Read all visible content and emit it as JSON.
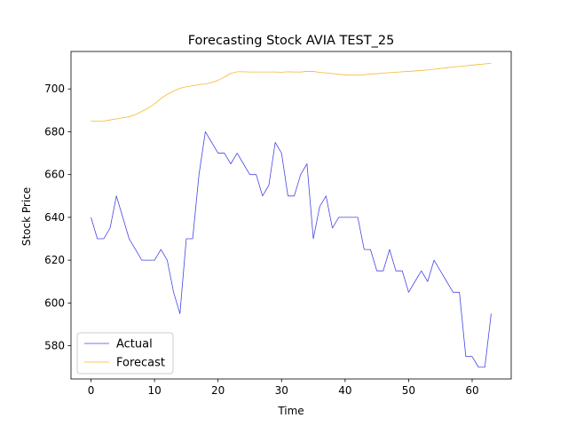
{
  "chart_data": {
    "type": "line",
    "title": "Forecasting Stock AVIA TEST_25",
    "xlabel": "Time",
    "ylabel": "Stock Price",
    "xlim": [
      -3.15,
      66.15
    ],
    "ylim": [
      564.5,
      717.5
    ],
    "xticks": [
      0,
      10,
      20,
      30,
      40,
      50,
      60
    ],
    "yticks": [
      580,
      600,
      620,
      640,
      660,
      680,
      700
    ],
    "grid": false,
    "legend_position": "lower-left",
    "series": [
      {
        "name": "Actual",
        "color": "#4646e6",
        "x": [
          0,
          1,
          2,
          3,
          4,
          5,
          6,
          7,
          8,
          9,
          10,
          11,
          12,
          13,
          14,
          15,
          16,
          17,
          18,
          19,
          20,
          21,
          22,
          23,
          24,
          25,
          26,
          27,
          28,
          29,
          30,
          31,
          32,
          33,
          34,
          35,
          36,
          37,
          38,
          39,
          40,
          41,
          42,
          43,
          44,
          45,
          46,
          47,
          48,
          49,
          50,
          51,
          52,
          53,
          54,
          55,
          56,
          57,
          58,
          59,
          60,
          61,
          62,
          63
        ],
        "values": [
          640,
          630,
          630,
          635,
          650,
          640,
          630,
          625,
          620,
          620,
          620,
          625,
          620,
          605,
          595,
          630,
          630,
          660,
          680,
          675,
          670,
          670,
          665,
          670,
          665,
          660,
          660,
          650,
          655,
          675,
          670,
          650,
          650,
          660,
          665,
          630,
          645,
          650,
          635,
          640,
          640,
          640,
          640,
          625,
          625,
          615,
          615,
          625,
          615,
          615,
          605,
          610,
          615,
          610,
          620,
          615,
          610,
          605,
          605,
          575,
          575,
          570,
          570,
          595
        ]
      },
      {
        "name": "Forecast",
        "color": "#f5b731",
        "x": [
          0,
          1,
          2,
          3,
          4,
          5,
          6,
          7,
          8,
          9,
          10,
          11,
          12,
          13,
          14,
          15,
          16,
          17,
          18,
          19,
          20,
          21,
          22,
          23,
          24,
          25,
          26,
          27,
          28,
          29,
          30,
          31,
          32,
          33,
          34,
          35,
          36,
          37,
          38,
          39,
          40,
          41,
          42,
          43,
          44,
          45,
          46,
          47,
          48,
          49,
          50,
          51,
          52,
          53,
          54,
          55,
          56,
          57,
          58,
          59,
          60,
          61,
          62,
          63
        ],
        "values": [
          685,
          685,
          685,
          685.5,
          686,
          686.5,
          687,
          688,
          689.5,
          691,
          693,
          695.5,
          697.5,
          699,
          700.3,
          701,
          701.5,
          702,
          702.3,
          703,
          704,
          705.5,
          707.3,
          708,
          708,
          707.9,
          707.9,
          707.9,
          707.9,
          707.9,
          707.8,
          708,
          707.9,
          707.9,
          708.2,
          708.2,
          707.7,
          707.5,
          707.2,
          706.8,
          706.6,
          706.4,
          706.5,
          706.6,
          707,
          707.1,
          707.4,
          707.6,
          707.8,
          708,
          708.2,
          708.4,
          708.6,
          708.9,
          709.2,
          709.5,
          709.9,
          710.2,
          710.5,
          710.8,
          711.1,
          711.4,
          711.7,
          712
        ]
      }
    ]
  }
}
